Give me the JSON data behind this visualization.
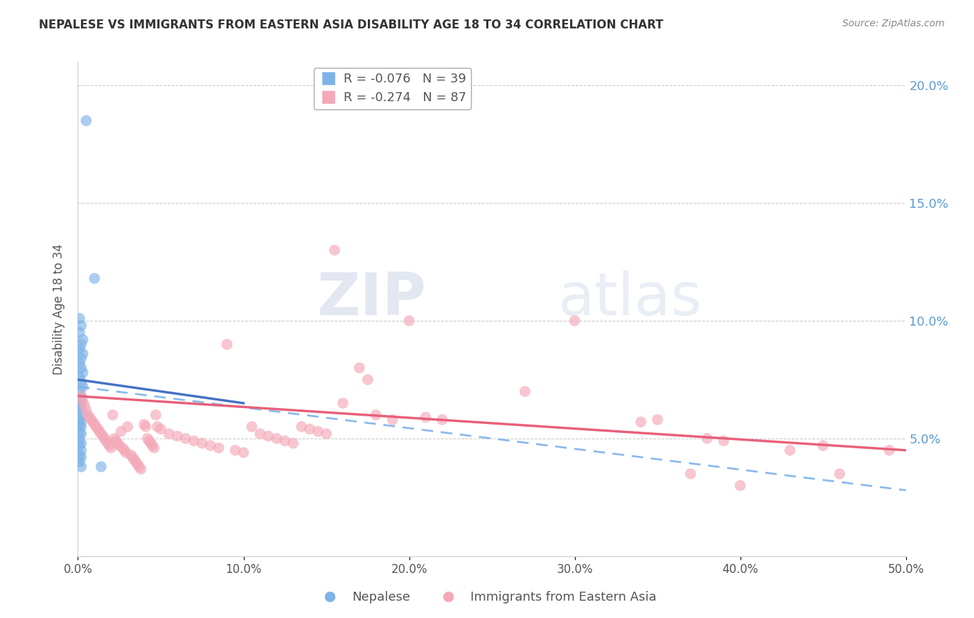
{
  "title": "NEPALESE VS IMMIGRANTS FROM EASTERN ASIA DISABILITY AGE 18 TO 34 CORRELATION CHART",
  "source": "Source: ZipAtlas.com",
  "ylabel": "Disability Age 18 to 34",
  "xlim": [
    0.0,
    0.5
  ],
  "ylim": [
    0.0,
    0.21
  ],
  "nepalese_R": -0.076,
  "nepalese_N": 39,
  "eastern_asia_R": -0.274,
  "eastern_asia_N": 87,
  "nepalese_color": "#7EB3E8",
  "eastern_asia_color": "#F4A8B8",
  "nepalese_line_color": "#4472C4",
  "eastern_asia_line_color": "#E8607A",
  "dashed_line_color": "#7EB3E8",
  "watermark_zip": "ZIP",
  "watermark_atlas": "atlas",
  "nepalese_points": [
    [
      0.005,
      0.185
    ],
    [
      0.01,
      0.118
    ],
    [
      0.001,
      0.101
    ],
    [
      0.002,
      0.098
    ],
    [
      0.001,
      0.095
    ],
    [
      0.003,
      0.092
    ],
    [
      0.002,
      0.09
    ],
    [
      0.001,
      0.088
    ],
    [
      0.003,
      0.086
    ],
    [
      0.002,
      0.084
    ],
    [
      0.001,
      0.082
    ],
    [
      0.002,
      0.08
    ],
    [
      0.003,
      0.078
    ],
    [
      0.001,
      0.076
    ],
    [
      0.002,
      0.074
    ],
    [
      0.003,
      0.072
    ],
    [
      0.001,
      0.07
    ],
    [
      0.002,
      0.068
    ],
    [
      0.001,
      0.067
    ],
    [
      0.002,
      0.066
    ],
    [
      0.001,
      0.064
    ],
    [
      0.002,
      0.063
    ],
    [
      0.001,
      0.062
    ],
    [
      0.003,
      0.06
    ],
    [
      0.001,
      0.058
    ],
    [
      0.002,
      0.057
    ],
    [
      0.001,
      0.056
    ],
    [
      0.002,
      0.055
    ],
    [
      0.001,
      0.053
    ],
    [
      0.002,
      0.052
    ],
    [
      0.001,
      0.05
    ],
    [
      0.002,
      0.048
    ],
    [
      0.001,
      0.047
    ],
    [
      0.002,
      0.045
    ],
    [
      0.001,
      0.043
    ],
    [
      0.002,
      0.042
    ],
    [
      0.001,
      0.04
    ],
    [
      0.014,
      0.038
    ],
    [
      0.002,
      0.038
    ]
  ],
  "eastern_asia_points": [
    [
      0.002,
      0.068
    ],
    [
      0.003,
      0.066
    ],
    [
      0.004,
      0.064
    ],
    [
      0.005,
      0.062
    ],
    [
      0.006,
      0.06
    ],
    [
      0.007,
      0.059
    ],
    [
      0.008,
      0.058
    ],
    [
      0.009,
      0.057
    ],
    [
      0.01,
      0.056
    ],
    [
      0.011,
      0.055
    ],
    [
      0.012,
      0.054
    ],
    [
      0.013,
      0.053
    ],
    [
      0.014,
      0.052
    ],
    [
      0.015,
      0.051
    ],
    [
      0.016,
      0.05
    ],
    [
      0.017,
      0.049
    ],
    [
      0.018,
      0.048
    ],
    [
      0.019,
      0.047
    ],
    [
      0.02,
      0.046
    ],
    [
      0.021,
      0.06
    ],
    [
      0.022,
      0.05
    ],
    [
      0.023,
      0.049
    ],
    [
      0.024,
      0.048
    ],
    [
      0.025,
      0.047
    ],
    [
      0.026,
      0.053
    ],
    [
      0.027,
      0.046
    ],
    [
      0.028,
      0.045
    ],
    [
      0.029,
      0.044
    ],
    [
      0.03,
      0.055
    ],
    [
      0.032,
      0.043
    ],
    [
      0.033,
      0.042
    ],
    [
      0.034,
      0.041
    ],
    [
      0.035,
      0.04
    ],
    [
      0.036,
      0.039
    ],
    [
      0.037,
      0.038
    ],
    [
      0.038,
      0.037
    ],
    [
      0.04,
      0.056
    ],
    [
      0.041,
      0.055
    ],
    [
      0.042,
      0.05
    ],
    [
      0.043,
      0.049
    ],
    [
      0.044,
      0.048
    ],
    [
      0.045,
      0.047
    ],
    [
      0.046,
      0.046
    ],
    [
      0.047,
      0.06
    ],
    [
      0.048,
      0.055
    ],
    [
      0.05,
      0.054
    ],
    [
      0.055,
      0.052
    ],
    [
      0.06,
      0.051
    ],
    [
      0.065,
      0.05
    ],
    [
      0.07,
      0.049
    ],
    [
      0.075,
      0.048
    ],
    [
      0.08,
      0.047
    ],
    [
      0.085,
      0.046
    ],
    [
      0.09,
      0.09
    ],
    [
      0.095,
      0.045
    ],
    [
      0.1,
      0.044
    ],
    [
      0.105,
      0.055
    ],
    [
      0.11,
      0.052
    ],
    [
      0.115,
      0.051
    ],
    [
      0.12,
      0.05
    ],
    [
      0.125,
      0.049
    ],
    [
      0.13,
      0.048
    ],
    [
      0.135,
      0.055
    ],
    [
      0.14,
      0.054
    ],
    [
      0.145,
      0.053
    ],
    [
      0.15,
      0.052
    ],
    [
      0.155,
      0.13
    ],
    [
      0.16,
      0.065
    ],
    [
      0.17,
      0.08
    ],
    [
      0.175,
      0.075
    ],
    [
      0.18,
      0.06
    ],
    [
      0.19,
      0.058
    ],
    [
      0.2,
      0.1
    ],
    [
      0.21,
      0.059
    ],
    [
      0.22,
      0.058
    ],
    [
      0.27,
      0.07
    ],
    [
      0.3,
      0.1
    ],
    [
      0.34,
      0.057
    ],
    [
      0.35,
      0.058
    ],
    [
      0.37,
      0.035
    ],
    [
      0.38,
      0.05
    ],
    [
      0.39,
      0.049
    ],
    [
      0.4,
      0.03
    ],
    [
      0.43,
      0.045
    ],
    [
      0.45,
      0.047
    ],
    [
      0.46,
      0.035
    ],
    [
      0.49,
      0.045
    ]
  ]
}
